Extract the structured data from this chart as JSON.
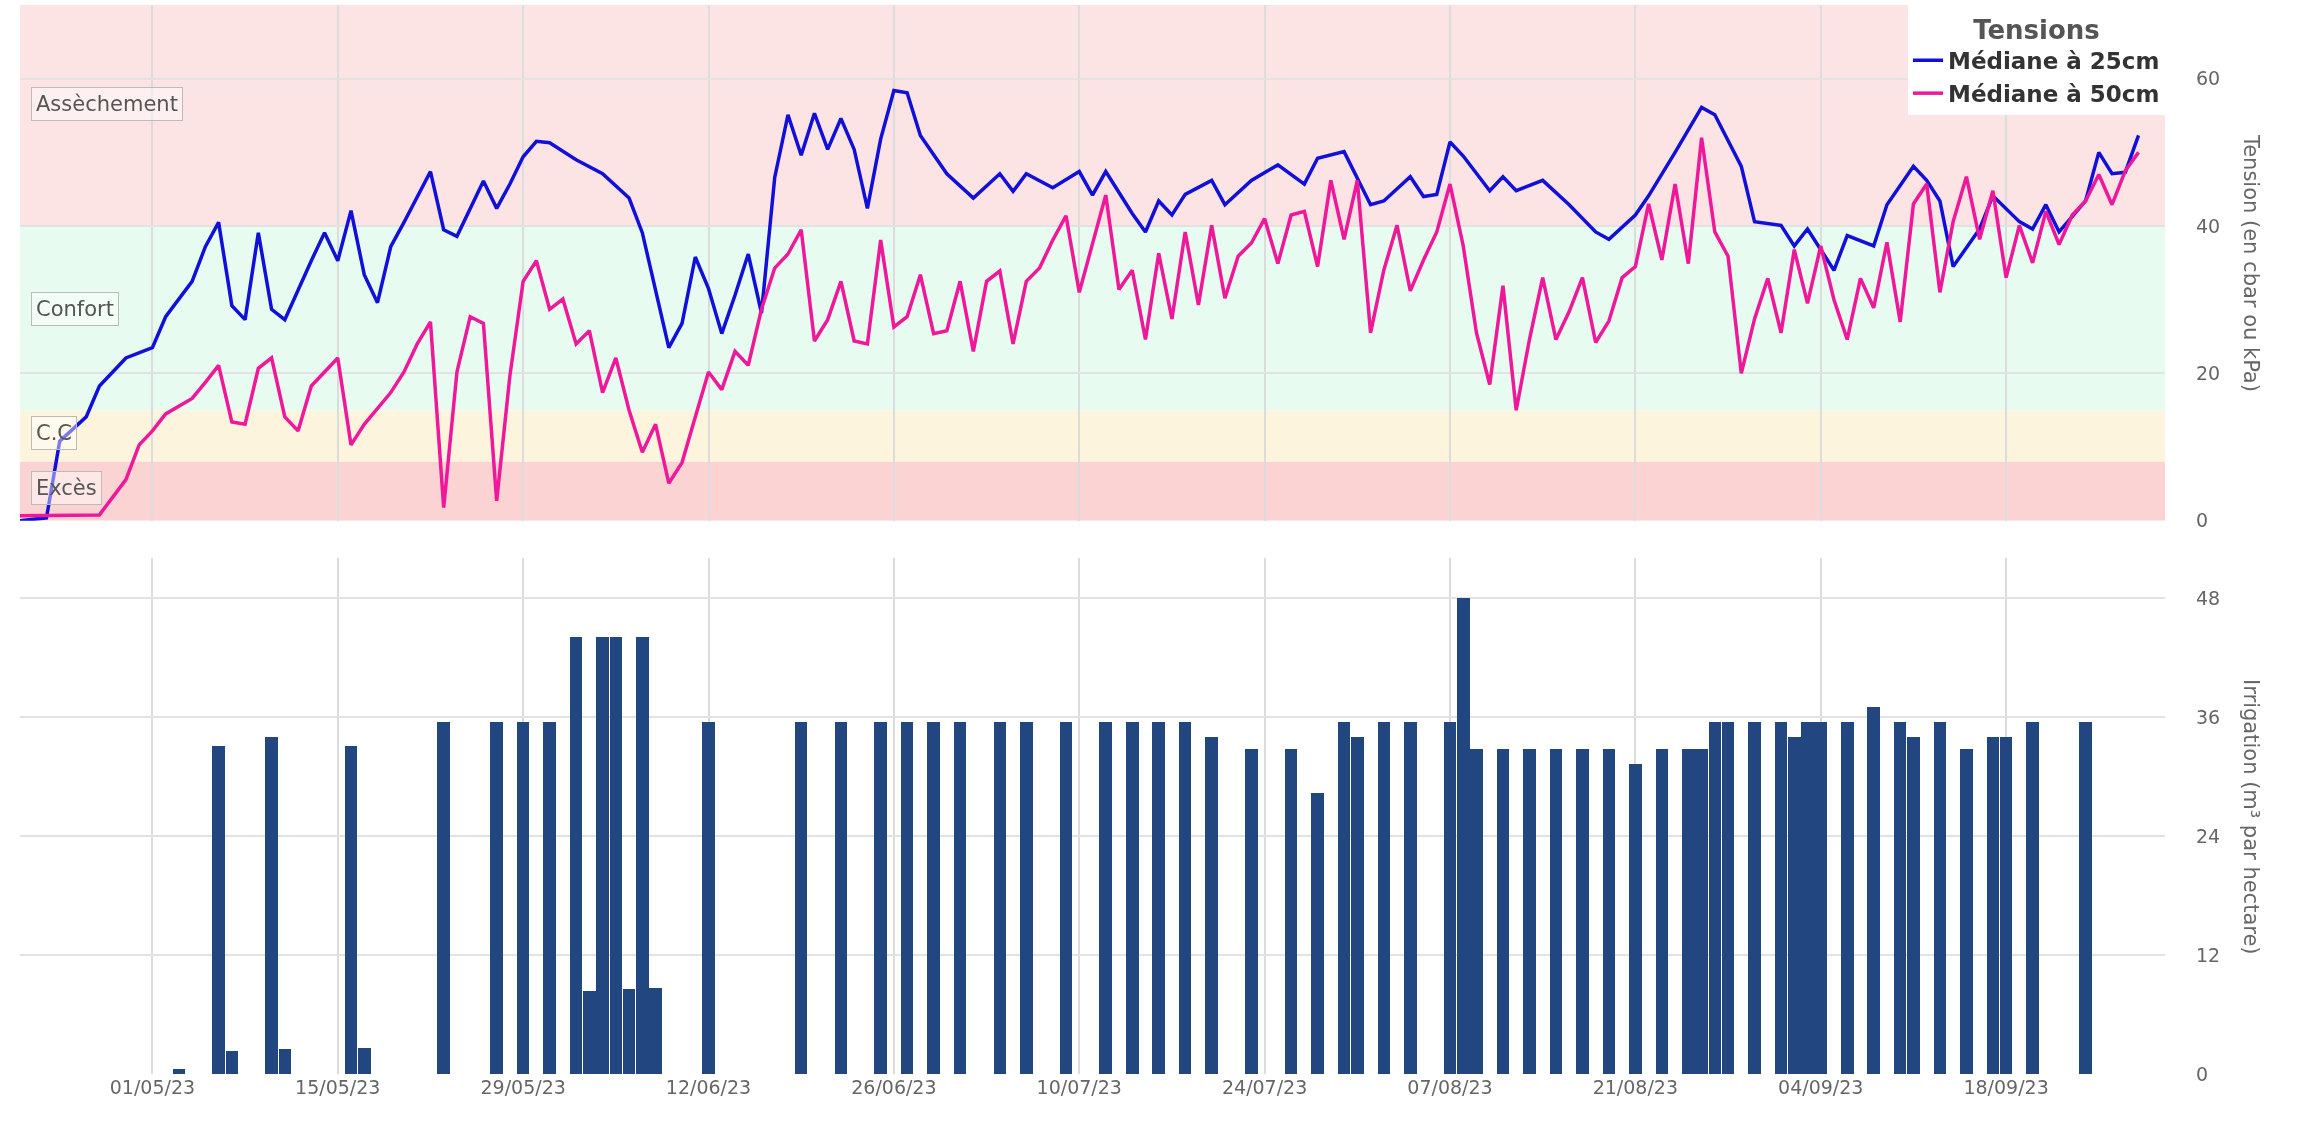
{
  "chart_data": [
    {
      "type": "line",
      "ylabel": "Tension (en cbar ou kPa)",
      "legend_title": "Tensions",
      "legend": "top right",
      "grid": true,
      "tick_labels": "y",
      "line_style": "solid",
      "marker": "none",
      "xlim": [
        "--04-21",
        "--09-30"
      ],
      "xticks": [
        {
          "value": "--05-01",
          "label": null
        },
        {
          "value": "--05-15",
          "label": null
        },
        {
          "value": "--05-29",
          "label": null
        },
        {
          "value": "--06-12",
          "label": null
        },
        {
          "value": "--06-26",
          "label": null
        },
        {
          "value": "--07-10",
          "label": null
        },
        {
          "value": "--07-24",
          "label": null
        },
        {
          "value": "--08-07",
          "label": null
        },
        {
          "value": "--08-21",
          "label": null
        },
        {
          "value": "--09-04",
          "label": null
        },
        {
          "value": "--09-18",
          "label": null
        }
      ],
      "ylim": [
        0,
        70
      ],
      "yticks": [
        0,
        20,
        40,
        60
      ],
      "bands": [
        {
          "axis": "y",
          "from": 40,
          "to": 70,
          "label": "Assèchement",
          "color": "#fde4e4"
        },
        {
          "axis": "y",
          "from": 15,
          "to": 40,
          "label": "Confort",
          "color": "#e8fbf1"
        },
        {
          "axis": "y",
          "from": 8,
          "to": 15,
          "label": "C.C",
          "color": "#fdf4de"
        },
        {
          "axis": "y",
          "from": 0,
          "to": 8,
          "label": "Excès",
          "color": "#fbd3d3"
        }
      ],
      "series": [
        {
          "name": "Médiane à 25cm",
          "color": "#1010d8",
          "x": [
            "--04-21",
            "--04-23",
            "--04-24",
            "--04-26",
            "--04-27",
            "--04-29",
            "--05-01",
            "--05-02",
            "--05-04",
            "--05-05",
            "--05-06",
            "--05-07",
            "--05-08",
            "--05-09",
            "--05-10",
            "--05-11",
            "--05-13",
            "--05-14",
            "--05-15",
            "--05-16",
            "--05-17",
            "--05-18",
            "--05-19",
            "--05-20",
            "--05-22",
            "--05-23",
            "--05-24",
            "--05-26",
            "--05-27",
            "--05-28",
            "--05-29",
            "--05-30",
            "--05-31",
            "--06-02",
            "--06-04",
            "--06-06",
            "--06-07",
            "--06-09",
            "--06-10",
            "--06-11",
            "--06-12",
            "--06-13",
            "--06-14",
            "--06-15",
            "--06-16",
            "--06-17",
            "--06-18",
            "--06-19",
            "--06-20",
            "--06-21",
            "--06-22",
            "--06-23",
            "--06-24",
            "--06-25",
            "--06-26",
            "--06-27",
            "--06-28",
            "--06-30",
            "--07-02",
            "--07-04",
            "--07-05",
            "--07-06",
            "--07-08",
            "--07-10",
            "--07-11",
            "--07-12",
            "--07-14",
            "--07-15",
            "--07-16",
            "--07-17",
            "--07-18",
            "--07-20",
            "--07-21",
            "--07-23",
            "--07-25",
            "--07-27",
            "--07-28",
            "--07-30",
            "--08-01",
            "--08-02",
            "--08-04",
            "--08-05",
            "--08-06",
            "--08-07",
            "--08-08",
            "--08-10",
            "--08-11",
            "--08-12",
            "--08-14",
            "--08-16",
            "--08-18",
            "--08-19",
            "--08-21",
            "--08-22",
            "--08-24",
            "--08-26",
            "--08-27",
            "--08-29",
            "--08-30",
            "--09-01",
            "--09-02",
            "--09-03",
            "--09-05",
            "--09-06",
            "--09-08",
            "--09-09",
            "--09-11",
            "--09-12",
            "--09-13",
            "--09-14",
            "--09-16",
            "--09-17",
            "--09-19",
            "--09-20",
            "--09-21",
            "--09-22",
            "--09-24",
            "--09-25",
            "--09-26",
            "--09-27",
            "--09-28"
          ],
          "values": [
            0,
            0.4,
            10.8,
            14.1,
            18.3,
            22.1,
            23.5,
            27.7,
            32.5,
            37.2,
            40.5,
            29.2,
            27.3,
            39.1,
            28.7,
            27.3,
            35.3,
            39.1,
            35.3,
            42.1,
            33.4,
            29.6,
            37.2,
            40.5,
            47.4,
            39.5,
            38.6,
            46.1,
            42.4,
            45.7,
            49.4,
            51.5,
            51.3,
            49.0,
            47.1,
            43.8,
            39.1,
            23.5,
            26.8,
            35.8,
            31.5,
            25.4,
            30.6,
            36.2,
            28.2,
            46.6,
            55.1,
            49.6,
            55.3,
            50.4,
            54.6,
            50.4,
            42.4,
            51.8,
            58.4,
            58.1,
            52.3,
            47.1,
            43.8,
            47.1,
            44.7,
            47.1,
            45.2,
            47.4,
            44.2,
            47.4,
            41.7,
            39.2,
            43.4,
            41.5,
            44.3,
            46.2,
            42.9,
            46.2,
            48.3,
            45.7,
            49.2,
            50.1,
            42.9,
            43.4,
            46.7,
            44.0,
            44.3,
            51.4,
            49.5,
            44.8,
            46.7,
            44.8,
            46.2,
            42.9,
            39.2,
            38.2,
            41.5,
            44.1,
            50.0,
            56.1,
            55.1,
            48.1,
            40.6,
            40.1,
            37.3,
            39.6,
            34.0,
            38.7,
            37.3,
            42.9,
            48.1,
            46.2,
            43.4,
            34.5,
            39.6,
            44.1,
            40.6,
            39.6,
            42.9,
            39.2,
            43.4,
            50.0,
            47.1,
            47.3,
            52.3
          ]
        },
        {
          "name": "Médiane à 50cm",
          "color": "#f0189a",
          "x": [
            "--04-21",
            "--04-27",
            "--04-29",
            "--04-30",
            "--05-01",
            "--05-02",
            "--05-04",
            "--05-05",
            "--05-06",
            "--05-07",
            "--05-08",
            "--05-09",
            "--05-10",
            "--05-11",
            "--05-12",
            "--05-13",
            "--05-15",
            "--05-16",
            "--05-17",
            "--05-19",
            "--05-20",
            "--05-21",
            "--05-22",
            "--05-23",
            "--05-24",
            "--05-25",
            "--05-26",
            "--05-27",
            "--05-28",
            "--05-29",
            "--05-30",
            "--05-31",
            "--06-01",
            "--06-02",
            "--06-03",
            "--06-04",
            "--06-05",
            "--06-06",
            "--06-07",
            "--06-08",
            "--06-09",
            "--06-10",
            "--06-11",
            "--06-12",
            "--06-13",
            "--06-14",
            "--06-15",
            "--06-16",
            "--06-17",
            "--06-18",
            "--06-19",
            "--06-20",
            "--06-21",
            "--06-22",
            "--06-23",
            "--06-24",
            "--06-25",
            "--06-26",
            "--06-27",
            "--06-28",
            "--06-29",
            "--06-30",
            "--07-01",
            "--07-02",
            "--07-03",
            "--07-04",
            "--07-05",
            "--07-06",
            "--07-07",
            "--07-08",
            "--07-09",
            "--07-10",
            "--07-12",
            "--07-13",
            "--07-14",
            "--07-15",
            "--07-16",
            "--07-17",
            "--07-18",
            "--07-19",
            "--07-20",
            "--07-21",
            "--07-22",
            "--07-23",
            "--07-24",
            "--07-25",
            "--07-26",
            "--07-27",
            "--07-28",
            "--07-29",
            "--07-30",
            "--07-31",
            "--08-01",
            "--08-02",
            "--08-03",
            "--08-04",
            "--08-05",
            "--08-06",
            "--08-07",
            "--08-08",
            "--08-09",
            "--08-10",
            "--08-11",
            "--08-12",
            "--08-13",
            "--08-14",
            "--08-15",
            "--08-16",
            "--08-17",
            "--08-18",
            "--08-19",
            "--08-20",
            "--08-21",
            "--08-22",
            "--08-23",
            "--08-24",
            "--08-25",
            "--08-26",
            "--08-27",
            "--08-28",
            "--08-29",
            "--08-30",
            "--08-31",
            "--09-01",
            "--09-02",
            "--09-03",
            "--09-04",
            "--09-05",
            "--09-06",
            "--09-07",
            "--09-08",
            "--09-09",
            "--09-10",
            "--09-11",
            "--09-12",
            "--09-13",
            "--09-14",
            "--09-15",
            "--09-16",
            "--09-17",
            "--09-18",
            "--09-19",
            "--09-20",
            "--09-21",
            "--09-22",
            "--09-23",
            "--09-24",
            "--09-25",
            "--09-26",
            "--09-27",
            "--09-28"
          ],
          "values": [
            0.7,
            0.8,
            5.6,
            10.3,
            12.2,
            14.5,
            16.6,
            18.8,
            21.1,
            13.4,
            13.1,
            20.7,
            22.1,
            14.1,
            12.2,
            18.3,
            22.1,
            10.3,
            13.1,
            17.4,
            20.2,
            24.0,
            27.0,
            1.8,
            20.2,
            27.7,
            26.8,
            2.7,
            19.7,
            32.5,
            35.3,
            28.7,
            30.1,
            24.0,
            25.8,
            17.4,
            22.1,
            15.0,
            9.3,
            13.1,
            5.1,
            7.9,
            14.1,
            20.2,
            17.8,
            23.0,
            21.1,
            28.7,
            34.3,
            36.2,
            39.5,
            24.4,
            27.3,
            32.5,
            24.4,
            24.0,
            38.1,
            26.3,
            27.7,
            33.4,
            25.4,
            25.8,
            32.5,
            23.0,
            32.5,
            33.9,
            24.0,
            32.5,
            34.3,
            38.1,
            41.4,
            31.0,
            44.2,
            31.4,
            34.0,
            24.6,
            36.3,
            27.4,
            39.2,
            29.3,
            40.1,
            30.2,
            35.9,
            37.7,
            41.0,
            34.9,
            41.5,
            42.0,
            34.5,
            46.2,
            38.2,
            46.2,
            25.5,
            34.0,
            40.1,
            31.2,
            35.4,
            39.2,
            45.7,
            37.3,
            25.5,
            18.5,
            31.9,
            15.0,
            24.6,
            33.0,
            24.6,
            28.4,
            33.0,
            24.2,
            27.1,
            33.0,
            34.5,
            43.0,
            35.4,
            45.7,
            34.9,
            52.0,
            39.2,
            35.9,
            20.0,
            27.4,
            32.9,
            25.5,
            36.8,
            29.5,
            37.3,
            30.0,
            24.6,
            32.9,
            28.9,
            37.8,
            27.0,
            43.0,
            45.7,
            31.0,
            40.6,
            46.7,
            38.2,
            44.8,
            33.0,
            40.1,
            35.0,
            42.0,
            37.5,
            41.5,
            43.4,
            47.0,
            42.9,
            47.5,
            50.0
          ]
        }
      ]
    },
    {
      "type": "bar",
      "ylabel": "Irrigation (m³ par hectare)",
      "grid": true,
      "xlim": [
        "--04-21",
        "--09-30"
      ],
      "xticks": [
        {
          "value": "--05-01",
          "label": "01/05/23"
        },
        {
          "value": "--05-15",
          "label": "15/05/23"
        },
        {
          "value": "--05-29",
          "label": "29/05/23"
        },
        {
          "value": "--06-12",
          "label": "12/06/23"
        },
        {
          "value": "--06-26",
          "label": "26/06/23"
        },
        {
          "value": "--07-10",
          "label": "10/07/23"
        },
        {
          "value": "--07-24",
          "label": "24/07/23"
        },
        {
          "value": "--08-07",
          "label": "07/08/23"
        },
        {
          "value": "--08-21",
          "label": "21/08/23"
        },
        {
          "value": "--09-04",
          "label": "04/09/23"
        },
        {
          "value": "--09-18",
          "label": "18/09/23"
        }
      ],
      "ylim": [
        0,
        52
      ],
      "yticks": [
        0,
        12,
        24,
        36,
        48
      ],
      "series": [
        {
          "color": "#22467f",
          "x": [
            "--05-03",
            "--05-06",
            "--05-07",
            "--05-10",
            "--05-11",
            "--05-16",
            "--05-17",
            "--05-23",
            "--05-27",
            "--05-29",
            "--05-31",
            "--06-02",
            "--06-03",
            "--06-04",
            "--06-05",
            "--06-06",
            "--06-07",
            "--06-08",
            "--06-12",
            "--06-19",
            "--06-22",
            "--06-25",
            "--06-27",
            "--06-29",
            "--07-01",
            "--07-04",
            "--07-06",
            "--07-09",
            "--07-12",
            "--07-14",
            "--07-16",
            "--07-18",
            "--07-20",
            "--07-23",
            "--07-26",
            "--07-28",
            "--07-30",
            "--07-31",
            "--08-02",
            "--08-04",
            "--08-07",
            "--08-08",
            "--08-09",
            "--08-11",
            "--08-13",
            "--08-15",
            "--08-17",
            "--08-19",
            "--08-21",
            "--08-23",
            "--08-25",
            "--08-26",
            "--08-27",
            "--08-28",
            "--08-30",
            "--09-01",
            "--09-02",
            "--09-03",
            "--09-04",
            "--09-06",
            "--09-08",
            "--09-10",
            "--09-11",
            "--09-13",
            "--09-15",
            "--09-17",
            "--09-18",
            "--09-20",
            "--09-24"
          ],
          "values": [
            0.5,
            33,
            2.3,
            34,
            2.5,
            33,
            2.6,
            35.5,
            35.5,
            35.5,
            35.5,
            44,
            8.3,
            44,
            44,
            8.5,
            44,
            8.7,
            35.5,
            35.5,
            35.5,
            35.5,
            35.5,
            35.5,
            35.5,
            35.5,
            35.5,
            35.5,
            35.5,
            35.5,
            35.5,
            35.5,
            34,
            32.7,
            32.7,
            28.3,
            35.5,
            34,
            35.5,
            35.5,
            35.5,
            48,
            32.7,
            32.7,
            32.7,
            32.7,
            32.7,
            32.7,
            31.2,
            32.7,
            32.7,
            32.7,
            35.5,
            35.5,
            35.5,
            35.5,
            34,
            35.5,
            35.5,
            35.5,
            37,
            35.5,
            34,
            35.5,
            32.7,
            34,
            34,
            35.5,
            35.5
          ]
        }
      ]
    }
  ]
}
